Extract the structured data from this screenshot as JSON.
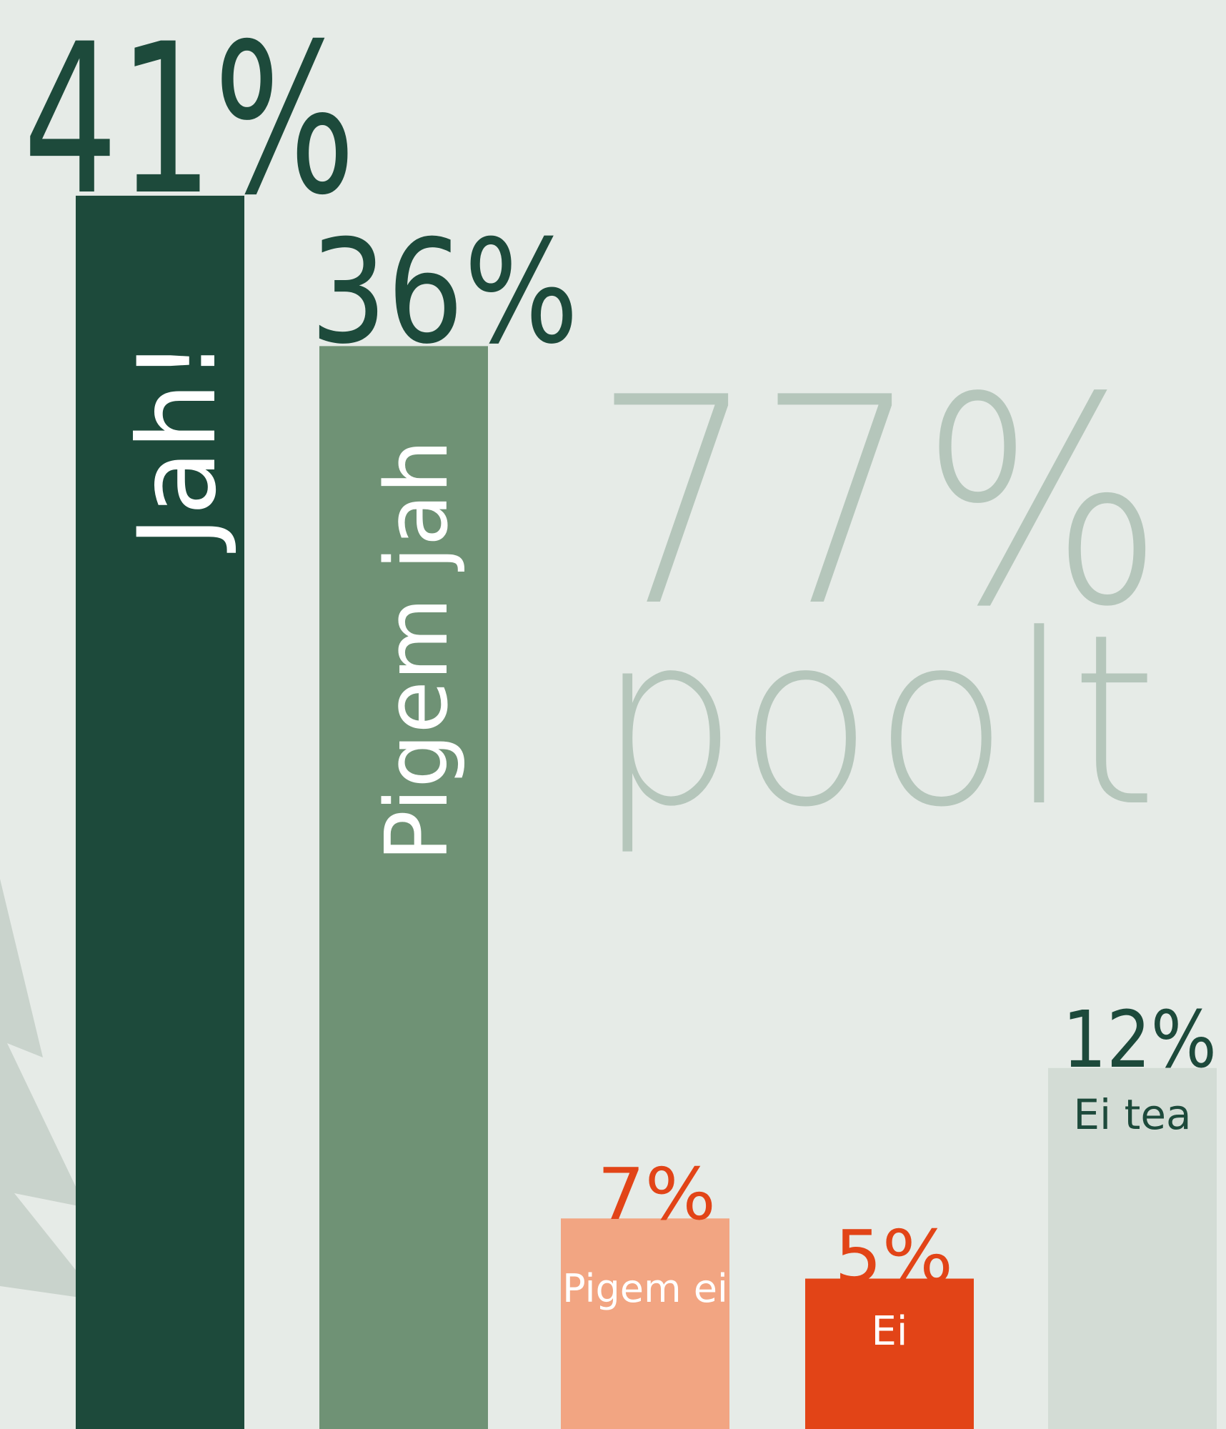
{
  "chart_data": {
    "type": "bar",
    "categories": [
      "Jah!",
      "Pigem jah",
      "Pigem ei",
      "Ei",
      "Ei tea"
    ],
    "values": [
      41,
      36,
      7,
      5,
      12
    ],
    "value_labels": [
      "41%",
      "36%",
      "7%",
      "5%",
      "12%"
    ],
    "colors": [
      "#1d4a3b",
      "#6f9275",
      "#f2a582",
      "#e24417",
      "#d3dcd5"
    ],
    "annotation": [
      "77%",
      "poolt"
    ]
  }
}
